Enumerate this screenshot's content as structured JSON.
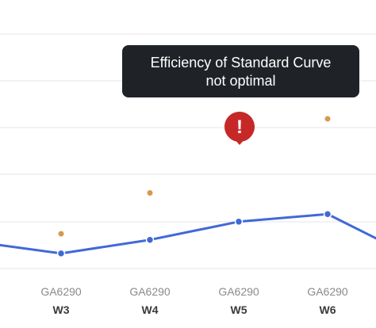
{
  "tooltip": {
    "line1": "Efficiency of Standard Curve",
    "line2": "not optimal"
  },
  "warning": {
    "symbol": "!",
    "icon": "exclamation-alert-icon",
    "color": "#c62828"
  },
  "colors": {
    "line": "#4169d6",
    "orange_points": "#d69a4a",
    "grid": "#e6e6e6",
    "tooltip_bg": "#1f2328"
  },
  "chart_data": {
    "type": "line",
    "categories": [
      {
        "id": "GA6290",
        "week": "W3"
      },
      {
        "id": "GA6290",
        "week": "W4"
      },
      {
        "id": "GA6290",
        "week": "W5"
      },
      {
        "id": "GA6290",
        "week": "W6"
      }
    ],
    "series": [
      {
        "values": [
          0.5,
          1.4,
          2.6,
          3.1
        ]
      },
      {
        "values": [
          1.8,
          4.5,
          12.1,
          9.4
        ]
      }
    ],
    "ylim": [
      -0.5,
      15
    ],
    "grid": true,
    "flagged_category": "W5"
  }
}
